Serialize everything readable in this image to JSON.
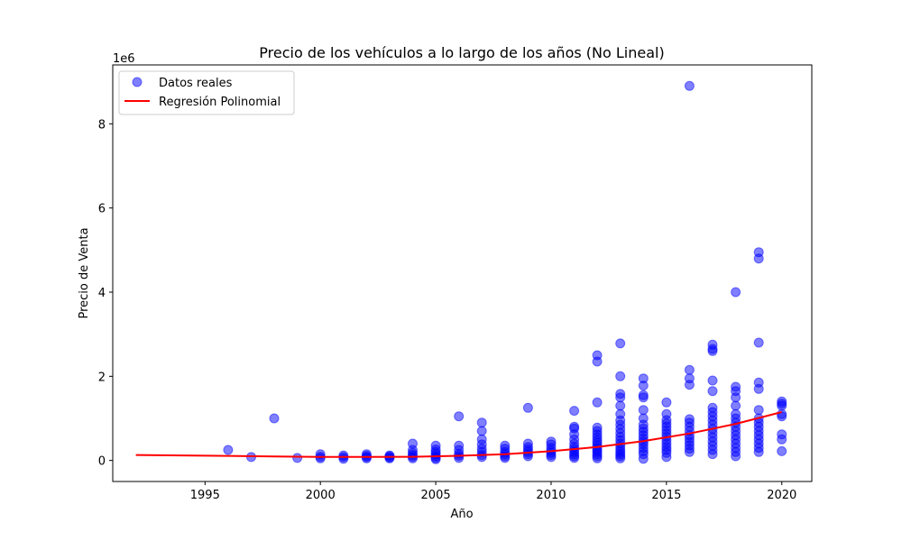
{
  "chart_data": {
    "type": "scatter",
    "title": "Precio de los vehículos a lo largo de los años (No Lineal)",
    "xlabel": "Año",
    "ylabel": "Precio de Venta",
    "y_scale_label": "1e6",
    "xlim": [
      1991,
      2021.3
    ],
    "ylim": [
      -500000,
      9400000
    ],
    "x_ticks": [
      1995,
      2000,
      2005,
      2010,
      2015,
      2020
    ],
    "x_tick_labels": [
      "1995",
      "2000",
      "2005",
      "2010",
      "2015",
      "2020"
    ],
    "y_ticks": [
      0,
      2000000,
      4000000,
      6000000,
      8000000
    ],
    "y_tick_labels": [
      "0",
      "2",
      "4",
      "6",
      "8"
    ],
    "grid": false,
    "legend_position": "top-left",
    "series": [
      {
        "name": "Datos reales",
        "kind": "scatter",
        "color": "#0000ff",
        "points": [
          [
            1996,
            250000
          ],
          [
            1997,
            80000
          ],
          [
            1998,
            1000000
          ],
          [
            1999,
            60000
          ],
          [
            2000,
            50000
          ],
          [
            2000,
            90000
          ],
          [
            2000,
            150000
          ],
          [
            2001,
            40000
          ],
          [
            2001,
            80000
          ],
          [
            2001,
            120000
          ],
          [
            2002,
            50000
          ],
          [
            2002,
            80000
          ],
          [
            2002,
            110000
          ],
          [
            2002,
            150000
          ],
          [
            2003,
            50000
          ],
          [
            2003,
            70000
          ],
          [
            2003,
            100000
          ],
          [
            2003,
            120000
          ],
          [
            2004,
            50000
          ],
          [
            2004,
            90000
          ],
          [
            2004,
            130000
          ],
          [
            2004,
            180000
          ],
          [
            2004,
            250000
          ],
          [
            2004,
            400000
          ],
          [
            2005,
            30000
          ],
          [
            2005,
            60000
          ],
          [
            2005,
            100000
          ],
          [
            2005,
            150000
          ],
          [
            2005,
            200000
          ],
          [
            2005,
            260000
          ],
          [
            2005,
            350000
          ],
          [
            2006,
            60000
          ],
          [
            2006,
            110000
          ],
          [
            2006,
            160000
          ],
          [
            2006,
            250000
          ],
          [
            2006,
            350000
          ],
          [
            2006,
            1050000
          ],
          [
            2007,
            80000
          ],
          [
            2007,
            130000
          ],
          [
            2007,
            200000
          ],
          [
            2007,
            280000
          ],
          [
            2007,
            380000
          ],
          [
            2007,
            500000
          ],
          [
            2007,
            700000
          ],
          [
            2007,
            900000
          ],
          [
            2008,
            60000
          ],
          [
            2008,
            100000
          ],
          [
            2008,
            150000
          ],
          [
            2008,
            200000
          ],
          [
            2008,
            280000
          ],
          [
            2008,
            350000
          ],
          [
            2009,
            100000
          ],
          [
            2009,
            150000
          ],
          [
            2009,
            200000
          ],
          [
            2009,
            260000
          ],
          [
            2009,
            320000
          ],
          [
            2009,
            400000
          ],
          [
            2009,
            1250000
          ],
          [
            2010,
            80000
          ],
          [
            2010,
            130000
          ],
          [
            2010,
            180000
          ],
          [
            2010,
            230000
          ],
          [
            2010,
            300000
          ],
          [
            2010,
            380000
          ],
          [
            2010,
            450000
          ],
          [
            2011,
            60000
          ],
          [
            2011,
            100000
          ],
          [
            2011,
            150000
          ],
          [
            2011,
            200000
          ],
          [
            2011,
            260000
          ],
          [
            2011,
            320000
          ],
          [
            2011,
            400000
          ],
          [
            2011,
            500000
          ],
          [
            2011,
            620000
          ],
          [
            2011,
            760000
          ],
          [
            2011,
            800000
          ],
          [
            2011,
            1180000
          ],
          [
            2012,
            50000
          ],
          [
            2012,
            100000
          ],
          [
            2012,
            150000
          ],
          [
            2012,
            200000
          ],
          [
            2012,
            250000
          ],
          [
            2012,
            300000
          ],
          [
            2012,
            360000
          ],
          [
            2012,
            420000
          ],
          [
            2012,
            480000
          ],
          [
            2012,
            550000
          ],
          [
            2012,
            620000
          ],
          [
            2012,
            700000
          ],
          [
            2012,
            780000
          ],
          [
            2012,
            1380000
          ],
          [
            2012,
            2350000
          ],
          [
            2012,
            2500000
          ],
          [
            2013,
            50000
          ],
          [
            2013,
            100000
          ],
          [
            2013,
            150000
          ],
          [
            2013,
            200000
          ],
          [
            2013,
            260000
          ],
          [
            2013,
            330000
          ],
          [
            2013,
            400000
          ],
          [
            2013,
            480000
          ],
          [
            2013,
            560000
          ],
          [
            2013,
            650000
          ],
          [
            2013,
            750000
          ],
          [
            2013,
            850000
          ],
          [
            2013,
            950000
          ],
          [
            2013,
            1100000
          ],
          [
            2013,
            1300000
          ],
          [
            2013,
            1500000
          ],
          [
            2013,
            1580000
          ],
          [
            2013,
            2000000
          ],
          [
            2013,
            2780000
          ],
          [
            2014,
            40000
          ],
          [
            2014,
            150000
          ],
          [
            2014,
            220000
          ],
          [
            2014,
            300000
          ],
          [
            2014,
            380000
          ],
          [
            2014,
            450000
          ],
          [
            2014,
            520000
          ],
          [
            2014,
            600000
          ],
          [
            2014,
            680000
          ],
          [
            2014,
            760000
          ],
          [
            2014,
            850000
          ],
          [
            2014,
            1000000
          ],
          [
            2014,
            1200000
          ],
          [
            2014,
            1500000
          ],
          [
            2014,
            1550000
          ],
          [
            2014,
            1780000
          ],
          [
            2014,
            1950000
          ],
          [
            2015,
            80000
          ],
          [
            2015,
            180000
          ],
          [
            2015,
            250000
          ],
          [
            2015,
            320000
          ],
          [
            2015,
            400000
          ],
          [
            2015,
            480000
          ],
          [
            2015,
            560000
          ],
          [
            2015,
            640000
          ],
          [
            2015,
            720000
          ],
          [
            2015,
            800000
          ],
          [
            2015,
            880000
          ],
          [
            2015,
            960000
          ],
          [
            2015,
            1100000
          ],
          [
            2015,
            1380000
          ],
          [
            2016,
            200000
          ],
          [
            2016,
            280000
          ],
          [
            2016,
            360000
          ],
          [
            2016,
            440000
          ],
          [
            2016,
            520000
          ],
          [
            2016,
            600000
          ],
          [
            2016,
            700000
          ],
          [
            2016,
            800000
          ],
          [
            2016,
            900000
          ],
          [
            2016,
            980000
          ],
          [
            2016,
            1800000
          ],
          [
            2016,
            1950000
          ],
          [
            2016,
            2150000
          ],
          [
            2016,
            8900000
          ],
          [
            2017,
            150000
          ],
          [
            2017,
            250000
          ],
          [
            2017,
            350000
          ],
          [
            2017,
            450000
          ],
          [
            2017,
            550000
          ],
          [
            2017,
            650000
          ],
          [
            2017,
            750000
          ],
          [
            2017,
            850000
          ],
          [
            2017,
            950000
          ],
          [
            2017,
            1050000
          ],
          [
            2017,
            1150000
          ],
          [
            2017,
            1250000
          ],
          [
            2017,
            1650000
          ],
          [
            2017,
            1900000
          ],
          [
            2017,
            2600000
          ],
          [
            2017,
            2650000
          ],
          [
            2017,
            2750000
          ],
          [
            2018,
            100000
          ],
          [
            2018,
            200000
          ],
          [
            2018,
            300000
          ],
          [
            2018,
            400000
          ],
          [
            2018,
            500000
          ],
          [
            2018,
            600000
          ],
          [
            2018,
            700000
          ],
          [
            2018,
            800000
          ],
          [
            2018,
            900000
          ],
          [
            2018,
            1000000
          ],
          [
            2018,
            1100000
          ],
          [
            2018,
            1300000
          ],
          [
            2018,
            1500000
          ],
          [
            2018,
            1650000
          ],
          [
            2018,
            1750000
          ],
          [
            2018,
            4000000
          ],
          [
            2019,
            200000
          ],
          [
            2019,
            300000
          ],
          [
            2019,
            400000
          ],
          [
            2019,
            500000
          ],
          [
            2019,
            600000
          ],
          [
            2019,
            700000
          ],
          [
            2019,
            800000
          ],
          [
            2019,
            900000
          ],
          [
            2019,
            1000000
          ],
          [
            2019,
            1200000
          ],
          [
            2019,
            1700000
          ],
          [
            2019,
            1850000
          ],
          [
            2019,
            2800000
          ],
          [
            2019,
            4800000
          ],
          [
            2019,
            4950000
          ],
          [
            2020,
            220000
          ],
          [
            2020,
            500000
          ],
          [
            2020,
            620000
          ],
          [
            2020,
            1050000
          ],
          [
            2020,
            1100000
          ],
          [
            2020,
            1300000
          ],
          [
            2020,
            1350000
          ],
          [
            2020,
            1400000
          ]
        ]
      },
      {
        "name": "Regresión Polinomial",
        "kind": "line",
        "color": "#ff0000",
        "points": [
          [
            1992,
            130000
          ],
          [
            1994,
            120000
          ],
          [
            1996,
            108000
          ],
          [
            1998,
            95000
          ],
          [
            2000,
            85000
          ],
          [
            2002,
            82000
          ],
          [
            2004,
            88000
          ],
          [
            2006,
            110000
          ],
          [
            2008,
            150000
          ],
          [
            2010,
            220000
          ],
          [
            2012,
            320000
          ],
          [
            2014,
            460000
          ],
          [
            2016,
            640000
          ],
          [
            2018,
            870000
          ],
          [
            2020,
            1150000
          ]
        ]
      }
    ]
  }
}
